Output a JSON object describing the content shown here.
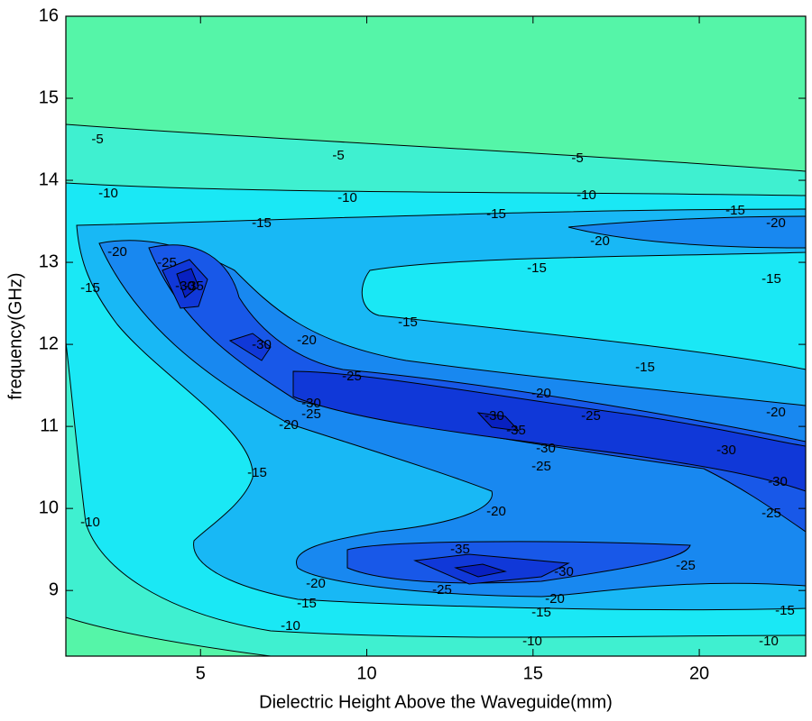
{
  "chart_data": {
    "type": "contour",
    "xlabel": "Dielectric Height Above the Waveguide(mm)",
    "ylabel": "frequency(GHz)",
    "xlim": [
      0.95,
      23.2
    ],
    "xticks": [
      5,
      10,
      15,
      20
    ],
    "ylim": [
      8.2,
      16
    ],
    "yticks": [
      9,
      10,
      11,
      12,
      13,
      14,
      15,
      16
    ],
    "levels": [
      -5,
      -10,
      -15,
      -20,
      -25,
      -30,
      -35
    ],
    "level_colors": [
      "#3ff0d0",
      "#1ae8f5",
      "#18b8f5",
      "#1888f0",
      "#1858e8",
      "#1038d8",
      "#0820c0"
    ],
    "top_color": "#55f5a8"
  }
}
